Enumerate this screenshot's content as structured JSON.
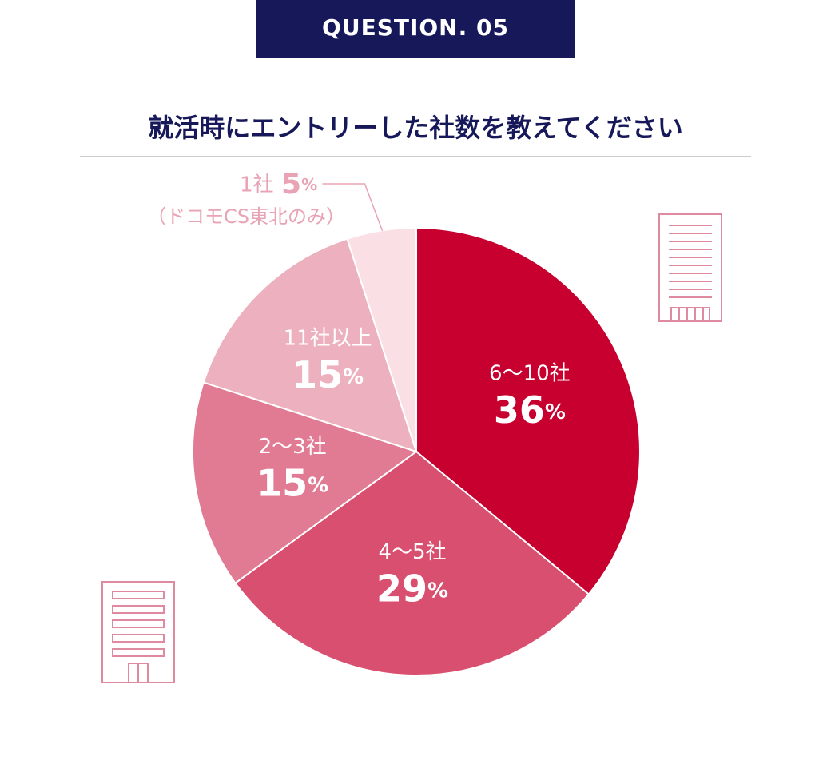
{
  "header": {
    "badge": "QUESTION. 05"
  },
  "chart_data": {
    "type": "pie",
    "title": "就活時にエントリーした社数を教えてください",
    "categories": [
      "6〜10社",
      "4〜5社",
      "2〜3社",
      "11社以上",
      "1社"
    ],
    "values": [
      36,
      29,
      15,
      15,
      5
    ],
    "value_labels": [
      "36%",
      "29%",
      "15%",
      "15%",
      "5%"
    ],
    "colors": [
      "#c8002f",
      "#d94f70",
      "#e07b93",
      "#edb0be",
      "#fae0e5"
    ],
    "annotation": "（ドコモCS東北のみ）"
  }
}
